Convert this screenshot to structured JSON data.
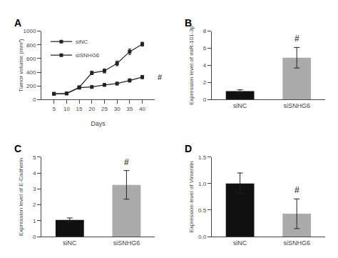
{
  "chart_data": [
    {
      "type": "line",
      "title": "A",
      "xlabel": "Days",
      "ylabel": "Tumor volume (mm³)",
      "x": [
        5,
        10,
        15,
        20,
        25,
        30,
        35,
        40
      ],
      "series": [
        {
          "name": "siNC",
          "color": "#222222",
          "marker": "square",
          "line_style": "solid",
          "values": [
            85,
            90,
            175,
            185,
            215,
            235,
            280,
            330
          ],
          "errors": [
            10,
            12,
            20,
            18,
            20,
            20,
            25,
            25
          ]
        },
        {
          "name": "siSNHG6",
          "color": "#222222",
          "marker": "square",
          "line_style": "solid",
          "values": [
            85,
            90,
            180,
            390,
            420,
            530,
            700,
            810
          ],
          "errors": [
            10,
            12,
            22,
            25,
            30,
            35,
            40,
            30
          ]
        }
      ],
      "xlim": [
        0,
        45
      ],
      "xticks": [
        5,
        10,
        15,
        20,
        25,
        30,
        35,
        40
      ],
      "ylim": [
        0,
        1000
      ],
      "yticks": [
        0,
        200,
        400,
        600,
        800,
        1000
      ],
      "legend": "upper left",
      "grid": false,
      "annotations": [
        {
          "text": "#",
          "y": 330
        }
      ]
    },
    {
      "type": "bar",
      "title": "B",
      "ylabel": "Expression level of miR-101-3p",
      "categories": [
        "siNC",
        "siSNHG6"
      ],
      "values": [
        1.0,
        4.9
      ],
      "errors": [
        0.15,
        1.2
      ],
      "colors": [
        "#111111",
        "#aaaaaa"
      ],
      "ylim": [
        0,
        8
      ],
      "yticks": [
        0,
        2,
        4,
        6,
        8
      ],
      "grid": false,
      "annotations": [
        {
          "text": "#",
          "x": "siSNHG6"
        }
      ]
    },
    {
      "type": "bar",
      "title": "C",
      "ylabel": "Expression level of E-Cadherin",
      "categories": [
        "siNC",
        "siSNHG6"
      ],
      "values": [
        1.05,
        3.25
      ],
      "errors": [
        0.12,
        0.9
      ],
      "colors": [
        "#111111",
        "#aaaaaa"
      ],
      "ylim": [
        0,
        5
      ],
      "yticks": [
        0,
        1,
        2,
        3,
        4,
        5
      ],
      "grid": false,
      "annotations": [
        {
          "text": "#",
          "x": "siSNHG6"
        }
      ]
    },
    {
      "type": "bar",
      "title": "D",
      "ylabel": "Expression level of Vimentin",
      "categories": [
        "siNC",
        "siSNHG6"
      ],
      "values": [
        1.0,
        0.43
      ],
      "errors": [
        0.2,
        0.28
      ],
      "colors": [
        "#111111",
        "#aaaaaa"
      ],
      "ylim": [
        0,
        1.5
      ],
      "yticks": [
        {
          "value": 0.0,
          "label": "0.0"
        },
        0.5,
        {
          "value": 1.0,
          "label": "1.0"
        },
        1.5
      ],
      "grid": false,
      "annotations": [
        {
          "text": "#",
          "x": "siSNHG6"
        }
      ]
    }
  ]
}
